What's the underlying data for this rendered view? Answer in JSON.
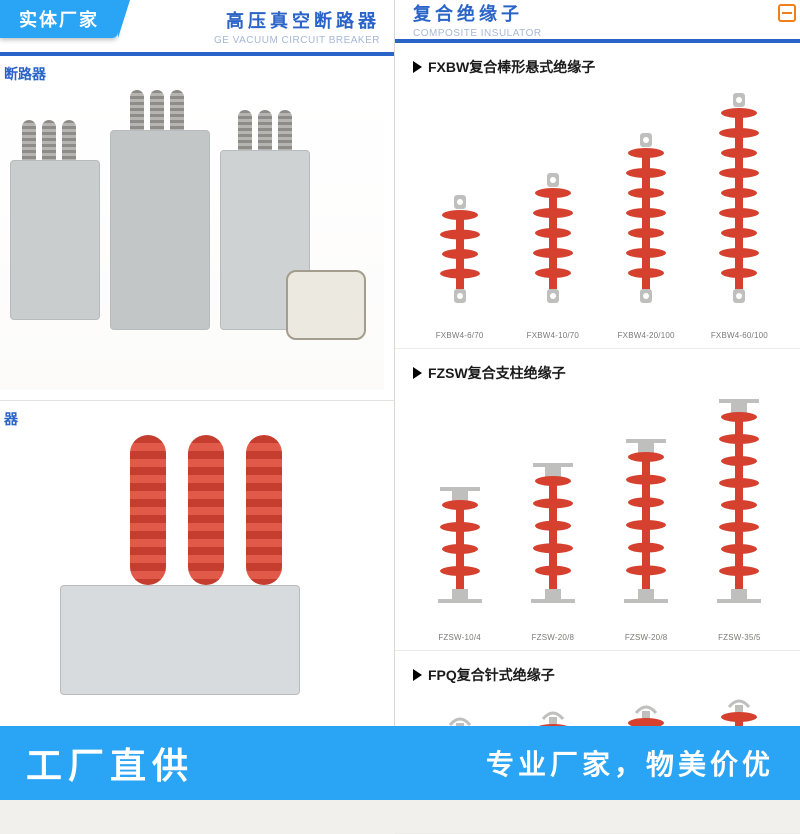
{
  "overlay": {
    "badge_top_left": "实体厂家",
    "banner_left": "工厂直供",
    "banner_right": "专业厂家，物美价优",
    "accent_color": "#2aa4f4"
  },
  "catalog": {
    "brand_color": "#2a64c8",
    "left": {
      "header_cn": "高压真空断路器",
      "header_en": "GE VACUUM CIRCUIT BREAKER",
      "section1_label": "断路器",
      "section2_label": "器"
    },
    "right": {
      "header_cn": "复合绝缘子",
      "header_en": "COMPOSITE INSULATOR",
      "families": [
        {
          "title": "FXBW复合棒形悬式绝缘子",
          "shed_color": "#d6402f",
          "fitting_color": "#bfbfbd",
          "items": [
            {
              "label": "FXBW4-6/70",
              "sheds": 4,
              "core_h": 78
            },
            {
              "label": "FXBW4-10/70",
              "sheds": 5,
              "core_h": 100
            },
            {
              "label": "FXBW4-20/100",
              "sheds": 7,
              "core_h": 140
            },
            {
              "label": "FXBW4-60/100",
              "sheds": 9,
              "core_h": 180
            }
          ]
        },
        {
          "title": "FZSW复合支柱绝缘子",
          "shed_color": "#d6402f",
          "fitting_color": "#bfbfbd",
          "items": [
            {
              "label": "FZSW-10/4",
              "sheds": 4,
              "core_h": 88,
              "flange": true
            },
            {
              "label": "FZSW-20/8",
              "sheds": 5,
              "core_h": 112,
              "flange": true
            },
            {
              "label": "FZSW-20/8",
              "sheds": 6,
              "core_h": 136,
              "flange": true
            },
            {
              "label": "FZSW-35/5",
              "sheds": 8,
              "core_h": 176,
              "flange": true
            }
          ]
        },
        {
          "title": "FPQ复合针式绝缘子",
          "shed_color": "#d6402f",
          "fitting_color": "#bfbfbd",
          "items": [
            {
              "label": "",
              "sheds": 3,
              "core_h": 48,
              "pin": true
            },
            {
              "label": "",
              "sheds": 3,
              "core_h": 54,
              "pin": true
            },
            {
              "label": "",
              "sheds": 4,
              "core_h": 60,
              "pin": true
            },
            {
              "label": "",
              "sheds": 4,
              "core_h": 66,
              "pin": true
            }
          ]
        }
      ]
    }
  }
}
